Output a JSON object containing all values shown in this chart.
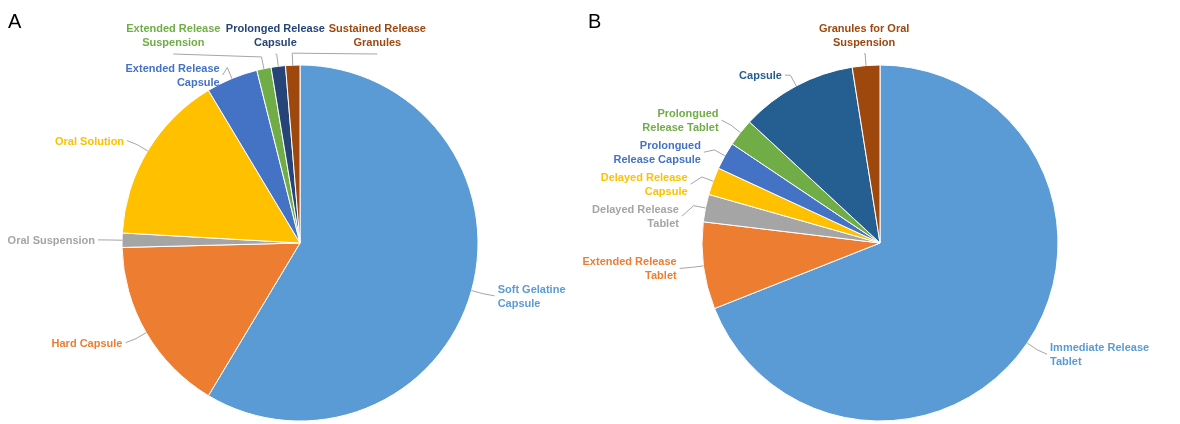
{
  "chart_data": [
    {
      "type": "pie",
      "title": "A",
      "categories": [
        "Soft Gelatine Capsule",
        "Hard Capsule",
        "Oral Suspension",
        "Oral Solution",
        "Extended Release Capsule",
        "Extended Release Suspension",
        "Prolonged Release Capsule",
        "Sustained Release Granules"
      ],
      "values": [
        58.6,
        16,
        1.3,
        15.5,
        4.7,
        1.3,
        1.3,
        1.3
      ],
      "colors": [
        "#5b9bd5",
        "#ed7d31",
        "#a5a5a5",
        "#ffc000",
        "#4472c4",
        "#70ad47",
        "#264478",
        "#9e480e"
      ]
    },
    {
      "type": "pie",
      "title": "B",
      "categories": [
        "Immediate Release Tablet",
        "Extended Release Tablet",
        "Delayed Release Tablet",
        "Delayed Release Capsule",
        "Prolongued Release Capsule",
        "Prolongued Release Tablet",
        "Capsule",
        "Granules for Oral Suspension"
      ],
      "values": [
        69,
        7.9,
        2.5,
        2.5,
        2.5,
        2.5,
        10.6,
        2.5
      ],
      "colors": [
        "#5b9bd5",
        "#ed7d31",
        "#a5a5a5",
        "#ffc000",
        "#4472c4",
        "#70ad47",
        "#255e91",
        "#9e480e"
      ]
    }
  ]
}
